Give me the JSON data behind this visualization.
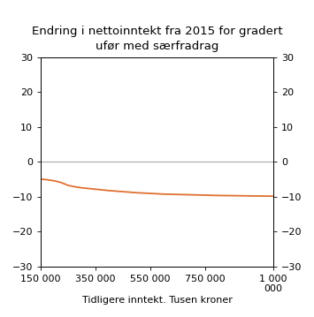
{
  "title": "Endring i nettoinntekt fra 2015 for gradert\nufør med særfradrag",
  "xlabel": "Tidligere inntekt. Tusen kroner",
  "xlim": [
    150000,
    1000000
  ],
  "ylim": [
    -30,
    30
  ],
  "yticks": [
    -30,
    -20,
    -10,
    0,
    10,
    20,
    30
  ],
  "xticks": [
    150000,
    350000,
    550000,
    750000,
    1000000
  ],
  "xticklabels": [
    "150 000",
    "350 000",
    "550 000",
    "750 000",
    "1 000\n000"
  ],
  "line_color": "#e07030",
  "zero_line_color": "#aaaaaa",
  "background_color": "#ffffff",
  "line_x": [
    150000,
    175000,
    200000,
    225000,
    250000,
    275000,
    300000,
    325000,
    350000,
    400000,
    450000,
    500000,
    550000,
    600000,
    650000,
    700000,
    750000,
    800000,
    850000,
    900000,
    950000,
    1000000
  ],
  "line_y": [
    -5.0,
    -5.2,
    -5.5,
    -6.0,
    -6.8,
    -7.2,
    -7.5,
    -7.7,
    -7.9,
    -8.3,
    -8.6,
    -8.9,
    -9.1,
    -9.3,
    -9.4,
    -9.5,
    -9.6,
    -9.7,
    -9.75,
    -9.8,
    -9.85,
    -9.9
  ],
  "title_fontsize": 9.5,
  "tick_fontsize": 8,
  "xlabel_fontsize": 8
}
